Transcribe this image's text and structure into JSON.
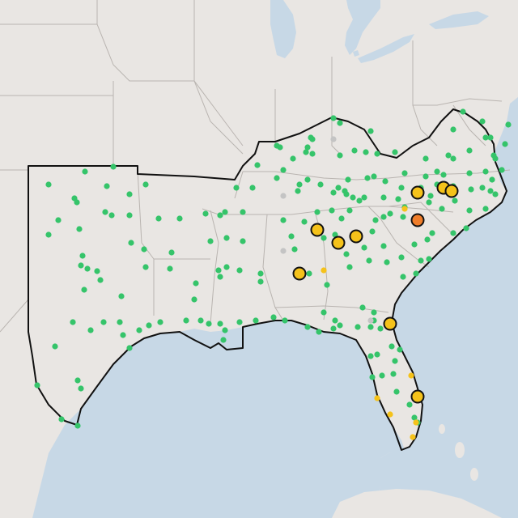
{
  "map": {
    "colors": {
      "land": "#e9e6e3",
      "water": "#c7d8e6",
      "state_border": "#b9b4b0",
      "region_outline": "#111111",
      "station_normal": "#35c46a",
      "station_no_data": "#c4c4c4",
      "station_minor": "#f5c21a",
      "station_moderate": "#f5c21a",
      "station_major": "#ef7d2a"
    },
    "layers": [
      "us-states",
      "lakes",
      "gulf-of-mexico",
      "atlantic-ocean",
      "region-outline",
      "station-markers"
    ]
  }
}
